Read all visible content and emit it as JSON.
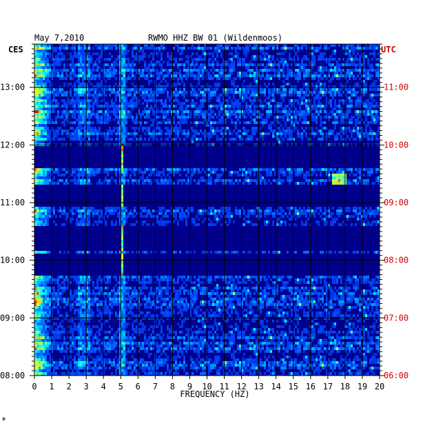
{
  "chart_data": {
    "type": "heatmap",
    "date": "May 7,2010",
    "title": "RWMO HHZ BW 01 (Wildenmoos)",
    "left_zone": "CES",
    "right_zone": "UTC",
    "xlabel": "FREQUENCY (HZ)",
    "xlim": [
      0,
      20
    ],
    "x_ticks": [
      "0",
      "1",
      "2",
      "3",
      "4",
      "5",
      "6",
      "7",
      "8",
      "9",
      "10",
      "11",
      "12",
      "13",
      "14",
      "15",
      "16",
      "17",
      "18",
      "19",
      "20"
    ],
    "y_ticks_left": [
      "13:00",
      "12:00",
      "11:00",
      "10:00",
      "09:00",
      "08:00"
    ],
    "y_ticks_right": [
      "11:00",
      "10:00",
      "09:00",
      "08:00",
      "07:00",
      "06:00"
    ],
    "time_range_ces": [
      "08:00",
      "13:45"
    ],
    "background_color": "#00008b",
    "colors": {
      "left_labels": "#000000",
      "right_labels": "#cc0000"
    },
    "corner_mark": "*"
  }
}
